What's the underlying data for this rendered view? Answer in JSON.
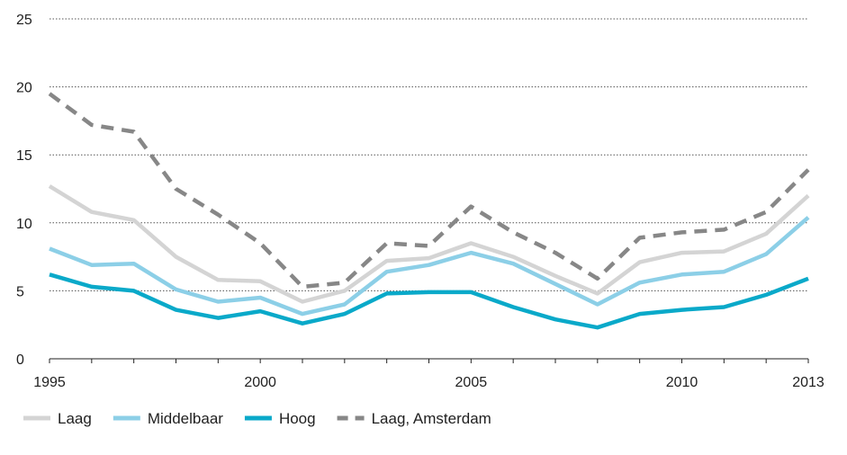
{
  "chart_data": {
    "type": "line",
    "x": [
      1995,
      1996,
      1997,
      1998,
      1999,
      2000,
      2001,
      2002,
      2003,
      2004,
      2005,
      2006,
      2007,
      2008,
      2009,
      2010,
      2011,
      2012,
      2013
    ],
    "x_tick_labels": [
      "1995",
      "2000",
      "2005",
      "2010",
      "2013"
    ],
    "x_ticks": [
      1995,
      2000,
      2005,
      2010,
      2013
    ],
    "y_tick_labels": [
      "0",
      "5",
      "10",
      "15",
      "20",
      "25"
    ],
    "y_ticks": [
      0,
      5,
      10,
      15,
      20,
      25
    ],
    "ylim": [
      0,
      25
    ],
    "xlim": [
      1995,
      2013
    ],
    "grid": "horizontal-dotted",
    "legend_position": "bottom",
    "series": [
      {
        "name": "Laag",
        "color": "#d4d4d4",
        "dash": "solid",
        "values": [
          12.7,
          10.8,
          10.2,
          7.5,
          5.8,
          5.7,
          4.2,
          5.0,
          7.2,
          7.4,
          8.5,
          7.5,
          6.1,
          4.8,
          7.1,
          7.8,
          7.9,
          9.2,
          12.0
        ]
      },
      {
        "name": "Middelbaar",
        "color": "#8ccfe7",
        "dash": "solid",
        "values": [
          8.1,
          6.9,
          7.0,
          5.1,
          4.2,
          4.5,
          3.3,
          4.0,
          6.4,
          6.9,
          7.8,
          7.0,
          5.5,
          4.0,
          5.6,
          6.2,
          6.4,
          7.7,
          10.4
        ]
      },
      {
        "name": "Hoog",
        "color": "#0aa9c9",
        "dash": "solid",
        "values": [
          6.2,
          5.3,
          5.0,
          3.6,
          3.0,
          3.5,
          2.6,
          3.3,
          4.8,
          4.9,
          4.9,
          3.8,
          2.9,
          2.3,
          3.3,
          3.6,
          3.8,
          4.7,
          5.9
        ]
      },
      {
        "name": "Laag, Amsterdam",
        "color": "#878787",
        "dash": "dashed",
        "values": [
          19.5,
          17.2,
          16.7,
          12.5,
          10.6,
          8.5,
          5.3,
          5.6,
          8.5,
          8.3,
          11.2,
          9.3,
          7.8,
          5.9,
          8.9,
          9.3,
          9.5,
          10.8,
          13.9
        ]
      }
    ]
  }
}
